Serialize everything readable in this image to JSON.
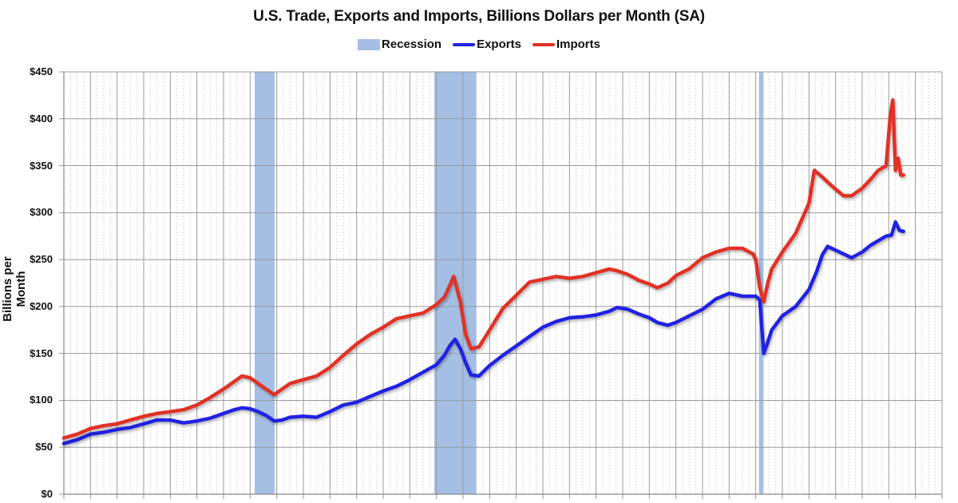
{
  "chart_data": {
    "type": "line",
    "title": "U.S. Trade, Exports and Imports, Billions Dollars per Month (SA)",
    "xlabel": "",
    "ylabel": "Billions per Month",
    "ylim": [
      0,
      450
    ],
    "xlim": [
      1994,
      2027
    ],
    "y_ticks": [
      "$0",
      "$50",
      "$100",
      "$150",
      "$200",
      "$250",
      "$300",
      "$350",
      "$400",
      "$450"
    ],
    "y_tick_values": [
      0,
      50,
      100,
      150,
      200,
      250,
      300,
      350,
      400,
      450
    ],
    "grid": {
      "major_vertical_every_years": 1,
      "minor_vertical_per_major": 3,
      "horizontal": true
    },
    "legend": {
      "position": "top",
      "entries": [
        "Recession",
        "Exports",
        "Imports"
      ]
    },
    "recessions": [
      {
        "start": 2001.17,
        "end": 2001.92
      },
      {
        "start": 2007.92,
        "end": 2009.5
      },
      {
        "start": 2020.12,
        "end": 2020.29
      }
    ],
    "series": [
      {
        "name": "Exports",
        "color": "#2323e0",
        "x": [
          1994.0,
          1994.5,
          1995.0,
          1995.5,
          1996.0,
          1996.5,
          1997.0,
          1997.5,
          1998.0,
          1998.5,
          1999.0,
          1999.5,
          2000.0,
          2000.4,
          2000.7,
          2001.0,
          2001.3,
          2001.6,
          2001.9,
          2002.2,
          2002.5,
          2003.0,
          2003.5,
          2004.0,
          2004.5,
          2005.0,
          2005.5,
          2006.0,
          2006.5,
          2007.0,
          2007.5,
          2008.0,
          2008.3,
          2008.5,
          2008.7,
          2008.9,
          2009.1,
          2009.3,
          2009.6,
          2010.0,
          2010.5,
          2011.0,
          2011.5,
          2012.0,
          2012.5,
          2013.0,
          2013.5,
          2014.0,
          2014.5,
          2014.8,
          2015.2,
          2015.6,
          2016.0,
          2016.3,
          2016.7,
          2017.0,
          2017.5,
          2018.0,
          2018.5,
          2019.0,
          2019.5,
          2020.0,
          2020.15,
          2020.3,
          2020.45,
          2020.6,
          2021.0,
          2021.5,
          2022.0,
          2022.3,
          2022.5,
          2022.7,
          2023.0,
          2023.3,
          2023.6,
          2024.0,
          2024.3,
          2024.6,
          2024.9,
          2025.1,
          2025.25,
          2025.4,
          2025.55
        ],
        "values": [
          54,
          58,
          64,
          66,
          69,
          71,
          75,
          79,
          79,
          76,
          78,
          81,
          86,
          90,
          92,
          91,
          88,
          84,
          78,
          79,
          82,
          83,
          82,
          88,
          95,
          98,
          104,
          110,
          115,
          122,
          130,
          138,
          148,
          158,
          165,
          155,
          140,
          127,
          126,
          137,
          148,
          158,
          168,
          178,
          184,
          188,
          189,
          191,
          195,
          199,
          197,
          192,
          188,
          183,
          180,
          183,
          190,
          197,
          208,
          214,
          211,
          211,
          207,
          150,
          162,
          175,
          190,
          200,
          218,
          238,
          255,
          264,
          260,
          256,
          252,
          258,
          265,
          270,
          275,
          276,
          290,
          281,
          280
        ]
      },
      {
        "name": "Imports",
        "color": "#e03226",
        "x": [
          1994.0,
          1994.5,
          1995.0,
          1995.5,
          1996.0,
          1996.5,
          1997.0,
          1997.5,
          1998.0,
          1998.5,
          1999.0,
          1999.5,
          2000.0,
          2000.4,
          2000.7,
          2001.0,
          2001.3,
          2001.6,
          2001.9,
          2002.2,
          2002.5,
          2003.0,
          2003.5,
          2004.0,
          2004.5,
          2005.0,
          2005.5,
          2006.0,
          2006.5,
          2007.0,
          2007.5,
          2008.0,
          2008.3,
          2008.5,
          2008.65,
          2008.9,
          2009.1,
          2009.3,
          2009.6,
          2010.0,
          2010.5,
          2011.0,
          2011.5,
          2012.0,
          2012.5,
          2013.0,
          2013.5,
          2014.0,
          2014.5,
          2014.8,
          2015.2,
          2015.6,
          2016.0,
          2016.3,
          2016.7,
          2017.0,
          2017.5,
          2018.0,
          2018.5,
          2019.0,
          2019.5,
          2019.9,
          2020.0,
          2020.15,
          2020.3,
          2020.45,
          2020.6,
          2021.0,
          2021.5,
          2022.0,
          2022.2,
          2022.5,
          2022.8,
          2023.0,
          2023.3,
          2023.6,
          2024.0,
          2024.3,
          2024.6,
          2024.9,
          2025.05,
          2025.15,
          2025.25,
          2025.35,
          2025.45,
          2025.55
        ],
        "values": [
          60,
          64,
          70,
          73,
          75,
          79,
          83,
          86,
          88,
          90,
          95,
          103,
          112,
          120,
          126,
          124,
          118,
          112,
          106,
          112,
          118,
          122,
          126,
          135,
          148,
          160,
          170,
          178,
          187,
          190,
          193,
          202,
          210,
          222,
          232,
          205,
          170,
          155,
          157,
          175,
          198,
          212,
          226,
          229,
          232,
          230,
          232,
          236,
          240,
          238,
          234,
          228,
          224,
          220,
          225,
          233,
          240,
          252,
          258,
          262,
          262,
          256,
          250,
          220,
          205,
          225,
          240,
          258,
          278,
          310,
          345,
          338,
          330,
          325,
          318,
          318,
          326,
          335,
          345,
          350,
          402,
          420,
          345,
          358,
          340,
          340
        ]
      }
    ]
  }
}
